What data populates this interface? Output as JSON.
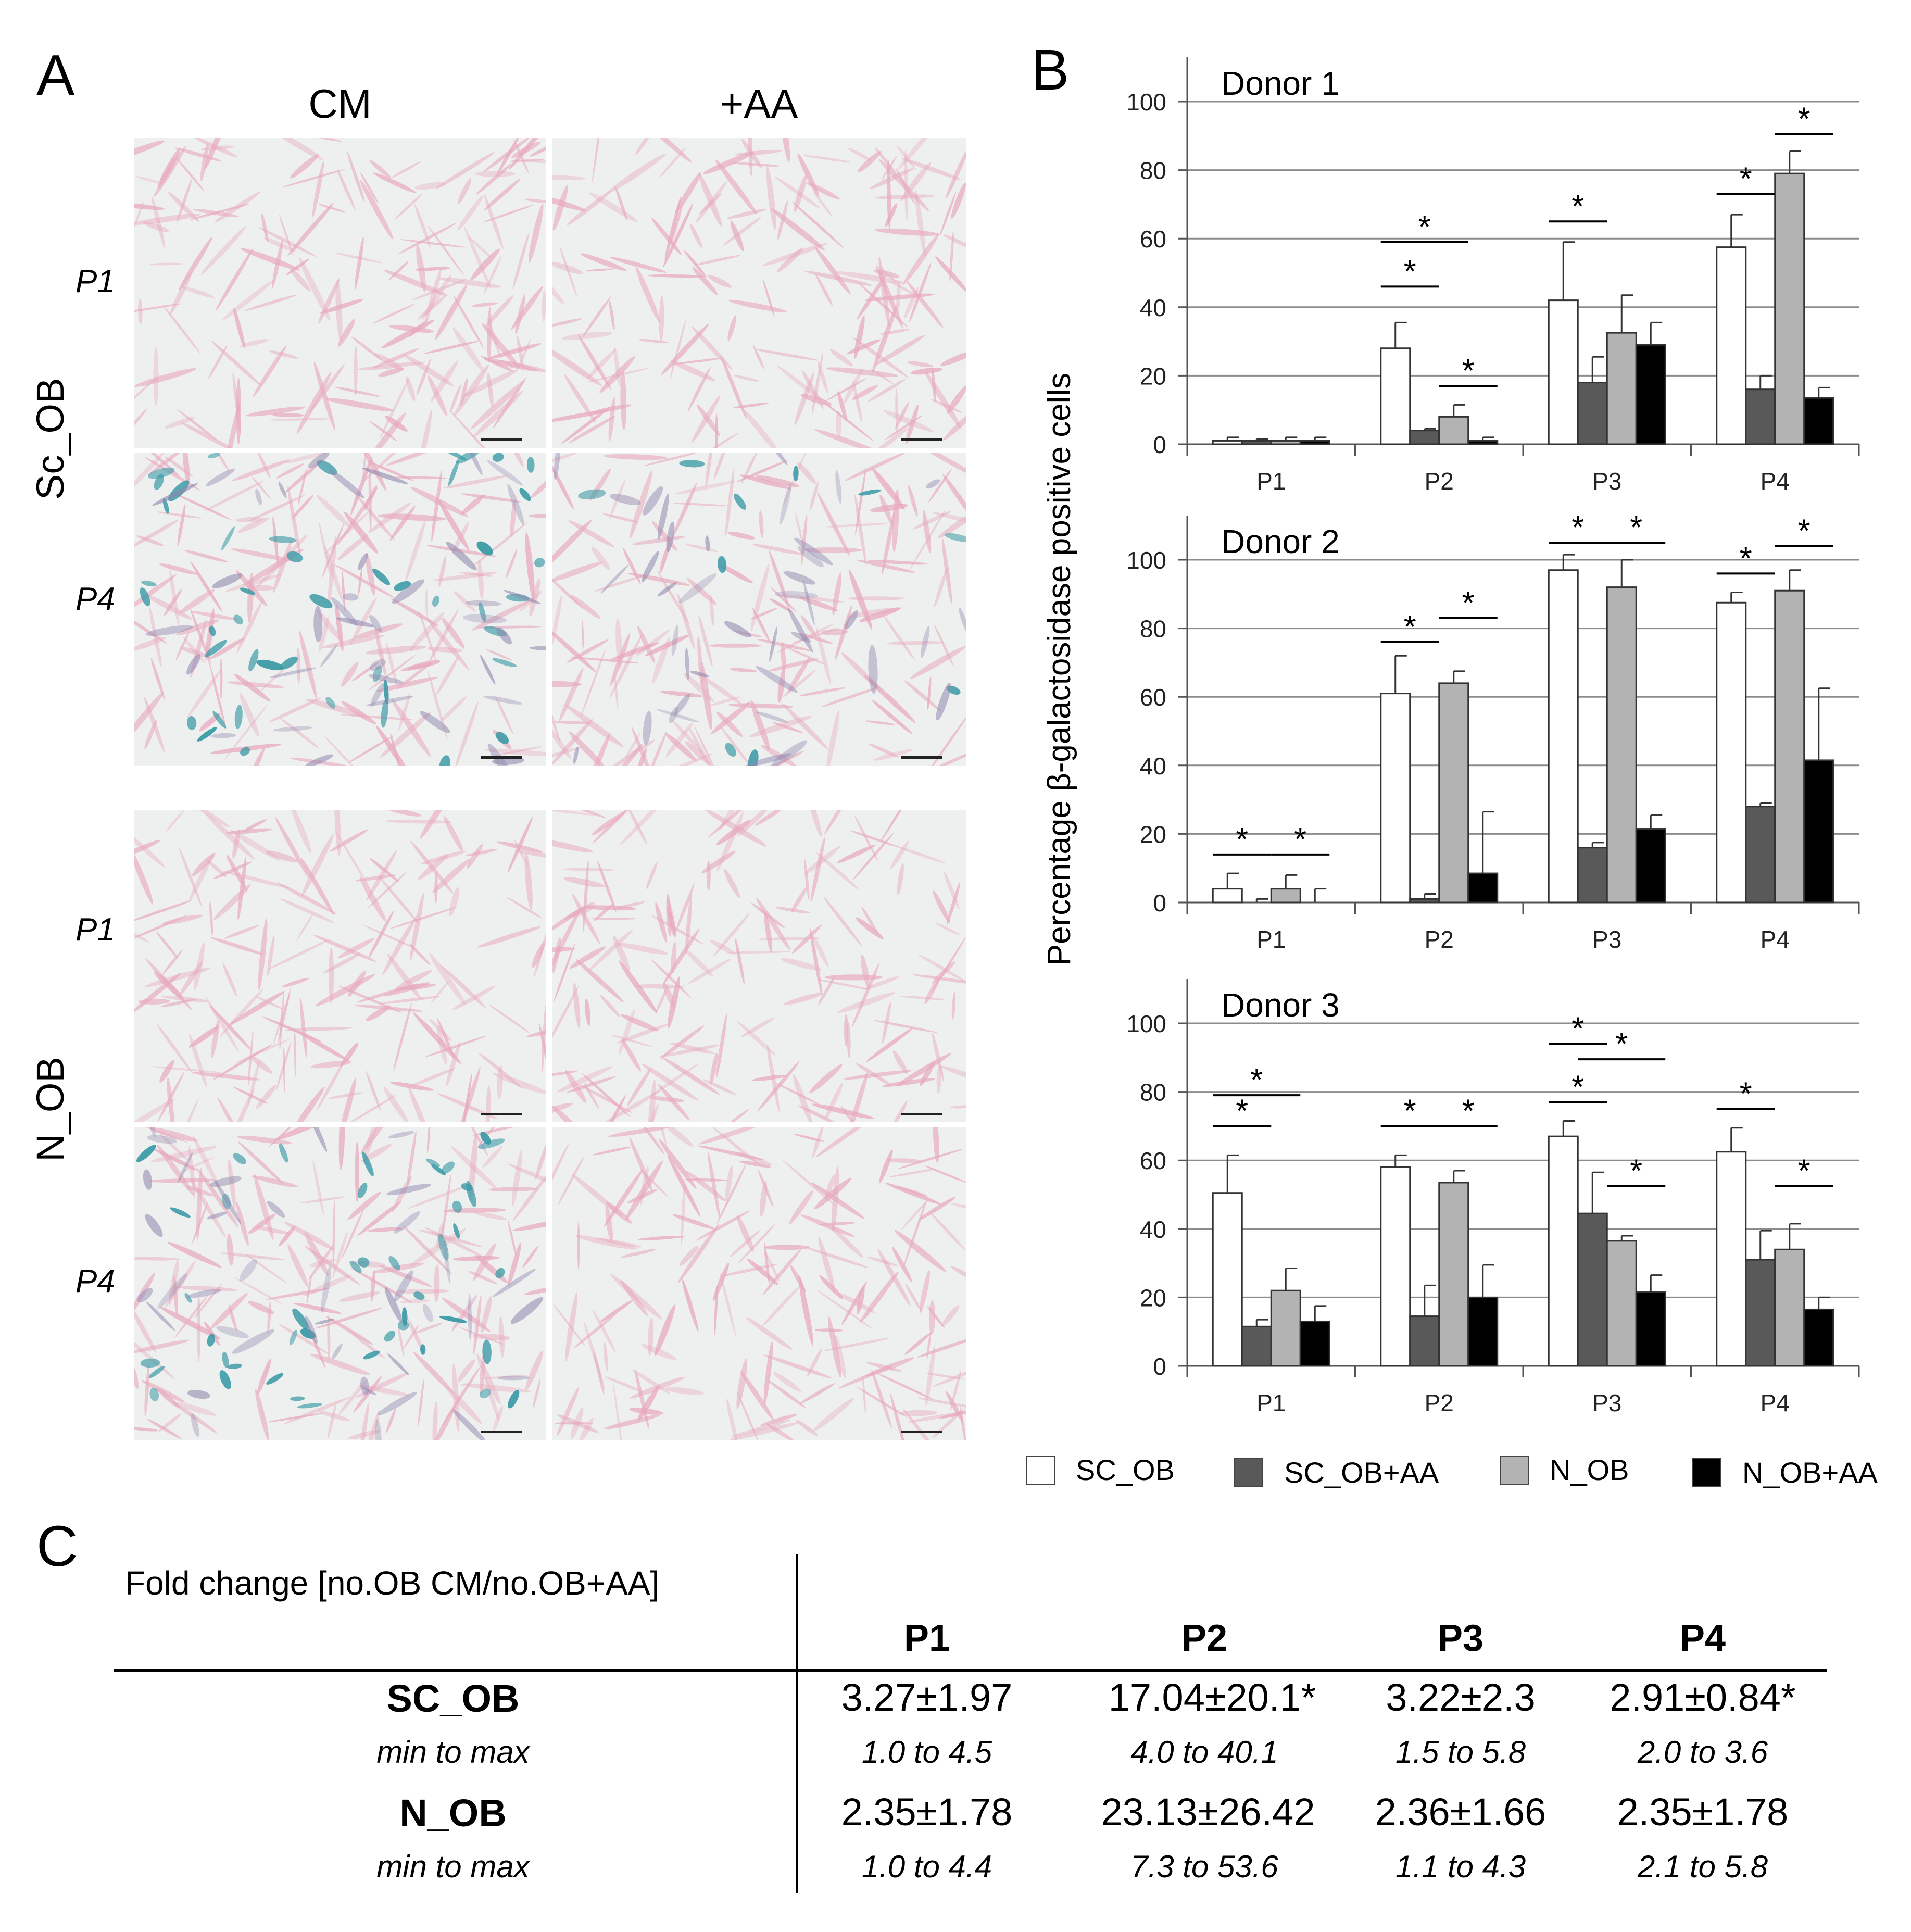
{
  "panelA": {
    "letter": "A",
    "col_headers": [
      "CM",
      "+AA"
    ],
    "row_labels": [
      "P1",
      "P4",
      "P1",
      "P4"
    ],
    "group_labels": [
      "Sc_OB",
      "N_OB"
    ]
  },
  "panelB": {
    "letter": "B"
  },
  "panelC": {
    "letter": "C"
  },
  "chart_data": [
    {
      "type": "bar",
      "title": "Donor 1",
      "ylabel": "Percentage β-galactosidase  positive cells",
      "categories": [
        "P1",
        "P2",
        "P3",
        "P4"
      ],
      "ylim": [
        0,
        100
      ],
      "yticks": [
        0,
        20,
        40,
        60,
        80,
        100
      ],
      "series": [
        {
          "name": "SC_OB",
          "color": "#ffffff",
          "values": [
            1,
            28,
            42,
            57.5
          ],
          "errors": [
            1,
            7.5,
            17,
            9.5
          ]
        },
        {
          "name": "SC_OB+AA",
          "color": "#595959",
          "values": [
            1,
            4,
            18,
            16
          ],
          "errors": [
            0.5,
            0.5,
            7.5,
            4
          ]
        },
        {
          "name": "N_OB",
          "color": "#b3b3b3",
          "values": [
            1,
            8,
            32.5,
            79
          ],
          "errors": [
            1,
            3.5,
            11,
            6.5
          ]
        },
        {
          "name": "N_OB+AA",
          "color": "#000000",
          "values": [
            1,
            1,
            29,
            13.5
          ],
          "errors": [
            1,
            1,
            6.5,
            3
          ]
        }
      ],
      "significance": [
        {
          "from": 0,
          "to": 1,
          "group": 1,
          "y": 46
        },
        {
          "from": 0,
          "to": 2,
          "group": 1,
          "y": 59
        },
        {
          "from": 2,
          "to": 3,
          "group": 1,
          "y": 17
        },
        {
          "from": 0,
          "to": 1,
          "group": 2,
          "y": 65
        },
        {
          "from": 0,
          "to": 1,
          "group": 3,
          "y": 73
        },
        {
          "from": 2,
          "to": 3,
          "group": 3,
          "y": 90.5
        }
      ]
    },
    {
      "type": "bar",
      "title": "Donor 2",
      "categories": [
        "P1",
        "P2",
        "P3",
        "P4"
      ],
      "ylim": [
        0,
        100
      ],
      "yticks": [
        0,
        20,
        40,
        60,
        80,
        100
      ],
      "series": [
        {
          "name": "SC_OB",
          "color": "#ffffff",
          "values": [
            4,
            61,
            97,
            87.5
          ],
          "errors": [
            4.5,
            11,
            4.5,
            3
          ]
        },
        {
          "name": "SC_OB+AA",
          "color": "#595959",
          "values": [
            0,
            1,
            16,
            28
          ],
          "errors": [
            1,
            1.5,
            1.5,
            1
          ]
        },
        {
          "name": "N_OB",
          "color": "#b3b3b3",
          "values": [
            4,
            64,
            92,
            91
          ],
          "errors": [
            4,
            3.5,
            8,
            6
          ]
        },
        {
          "name": "N_OB+AA",
          "color": "#000000",
          "values": [
            0,
            8.5,
            21.5,
            41.5
          ],
          "errors": [
            4,
            18,
            4,
            21
          ]
        }
      ],
      "significance": [
        {
          "from": 0,
          "to": 1,
          "group": 0,
          "y": 14
        },
        {
          "from": 2,
          "to": 3,
          "group": 0,
          "y": 14
        },
        {
          "from": 0,
          "to": 1,
          "group": 1,
          "y": 76
        },
        {
          "from": 2,
          "to": 3,
          "group": 1,
          "y": 83
        },
        {
          "from": 0,
          "to": 1,
          "group": 2,
          "y": 105
        },
        {
          "from": 2,
          "to": 3,
          "group": 2,
          "y": 105
        },
        {
          "from": 0,
          "to": 1,
          "group": 3,
          "y": 96
        },
        {
          "from": 2,
          "to": 3,
          "group": 3,
          "y": 104
        }
      ]
    },
    {
      "type": "bar",
      "title": "Donor 3",
      "categories": [
        "P1",
        "P2",
        "P3",
        "P4"
      ],
      "ylim": [
        0,
        100
      ],
      "yticks": [
        0,
        20,
        40,
        60,
        80,
        100
      ],
      "series": [
        {
          "name": "SC_OB",
          "color": "#ffffff",
          "values": [
            50.5,
            58,
            67,
            62.5
          ],
          "errors": [
            11,
            3.5,
            4.5,
            7
          ]
        },
        {
          "name": "SC_OB+AA",
          "color": "#595959",
          "values": [
            11.5,
            14.5,
            44.5,
            31
          ],
          "errors": [
            2,
            9,
            12,
            8.5
          ]
        },
        {
          "name": "N_OB",
          "color": "#b3b3b3",
          "values": [
            22,
            53.5,
            36.5,
            34
          ],
          "errors": [
            6.5,
            3.5,
            1.5,
            7.5
          ]
        },
        {
          "name": "N_OB+AA",
          "color": "#000000",
          "values": [
            13,
            20,
            21.5,
            16.5
          ],
          "errors": [
            4.5,
            9.5,
            5,
            3.5
          ]
        }
      ],
      "significance": [
        {
          "from": 0,
          "to": 1,
          "group": 0,
          "y": 70
        },
        {
          "from": 0,
          "to": 2,
          "group": 0,
          "y": 79
        },
        {
          "from": 0,
          "to": 1,
          "group": 1,
          "y": 70
        },
        {
          "from": 2,
          "to": 3,
          "group": 1,
          "y": 70
        },
        {
          "from": 0,
          "to": 1,
          "group": 2,
          "y": 77
        },
        {
          "from": 0,
          "to": 1,
          "group": 2,
          "y": 94
        },
        {
          "from": 1,
          "to": 3,
          "group": 2,
          "y": 89.5
        },
        {
          "from": 2,
          "to": 3,
          "group": 2,
          "y": 52.5
        },
        {
          "from": 0,
          "to": 1,
          "group": 3,
          "y": 75
        },
        {
          "from": 2,
          "to": 3,
          "group": 3,
          "y": 52.5
        }
      ]
    }
  ],
  "legend": {
    "items": [
      {
        "label": "SC_OB",
        "color": "#ffffff"
      },
      {
        "label": "SC_OB+AA",
        "color": "#595959"
      },
      {
        "label": "N_OB",
        "color": "#b3b3b3"
      },
      {
        "label": "N_OB+AA",
        "color": "#000000"
      }
    ]
  },
  "table": {
    "title": "Fold change [no.OB CM/no.OB+AA]",
    "columns": [
      "P1",
      "P2",
      "P3",
      "P4"
    ],
    "rows": [
      {
        "name": "SC_OB",
        "values": [
          "3.27±1.97",
          "17.04±20.1*",
          "3.22±2.3",
          "2.91±0.84*"
        ],
        "range_label": "min to max",
        "ranges": [
          "1.0 to 4.5",
          "4.0 to 40.1",
          "1.5 to 5.8",
          "2.0 to 3.6"
        ]
      },
      {
        "name": "N_OB",
        "values": [
          "2.35±1.78",
          "23.13±26.42",
          "2.36±1.66",
          "2.35±1.78"
        ],
        "range_label": "min to max",
        "ranges": [
          "1.0 to 4.4",
          "7.3 to 53.6",
          "1.1 to 4.3",
          "2.1 to 5.8"
        ]
      }
    ]
  }
}
